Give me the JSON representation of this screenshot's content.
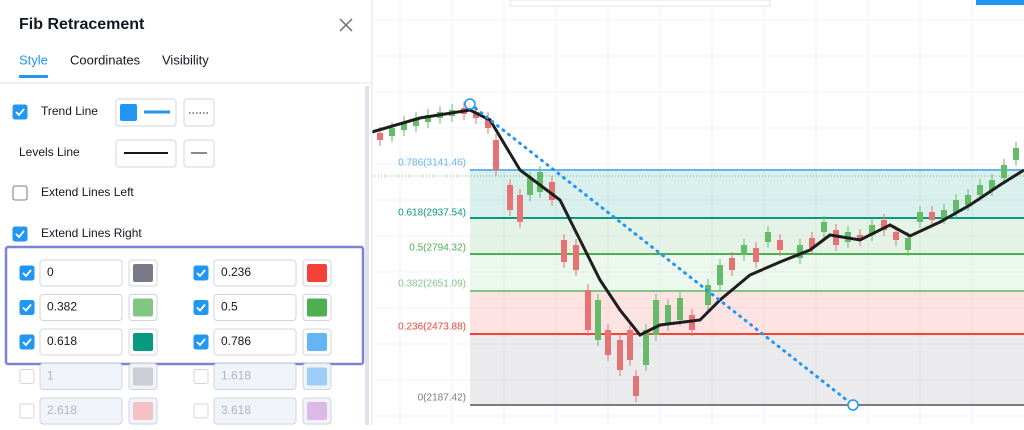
{
  "dialog": {
    "title": "Fib Retracement",
    "tabs": [
      {
        "label": "Style",
        "active": true
      },
      {
        "label": "Coordinates",
        "active": false
      },
      {
        "label": "Visibility",
        "active": false
      }
    ],
    "options": {
      "trend_line": {
        "label": "Trend Line",
        "checked": true,
        "color": "#2196f3"
      },
      "levels_line": {
        "label": "Levels Line"
      },
      "extend_left": {
        "label": "Extend Lines Left",
        "checked": false
      },
      "extend_right": {
        "label": "Extend Lines Right",
        "checked": true
      }
    },
    "levels": [
      {
        "value": "0",
        "checked": true,
        "color": "#787b86"
      },
      {
        "value": "0.236",
        "checked": true,
        "color": "#f44336"
      },
      {
        "value": "0.382",
        "checked": true,
        "color": "#81c784"
      },
      {
        "value": "0.5",
        "checked": true,
        "color": "#4caf50"
      },
      {
        "value": "0.618",
        "checked": true,
        "color": "#089981"
      },
      {
        "value": "0.786",
        "checked": true,
        "color": "#64b5f6"
      },
      {
        "value": "1",
        "checked": false,
        "color": "#b2b5be"
      },
      {
        "value": "1.618",
        "checked": false,
        "color": "#64b5f6"
      },
      {
        "value": "2.618",
        "checked": false,
        "color": "#f7a1a1"
      },
      {
        "value": "3.618",
        "checked": false,
        "color": "#ce93d8"
      }
    ]
  },
  "chart": {
    "levels": [
      {
        "label": "0.786(3141.46)",
        "color": "#64b5f6"
      },
      {
        "label": "0.618(2937.54)",
        "color": "#089981"
      },
      {
        "label": "0.5(2794.32)",
        "color": "#4caf50"
      },
      {
        "label": "0.382(2651.09)",
        "color": "#81c784"
      },
      {
        "label": "0.236(2473.88)",
        "color": "#f44336"
      },
      {
        "label": "0(2187.42)",
        "color": "#787b86"
      }
    ]
  }
}
